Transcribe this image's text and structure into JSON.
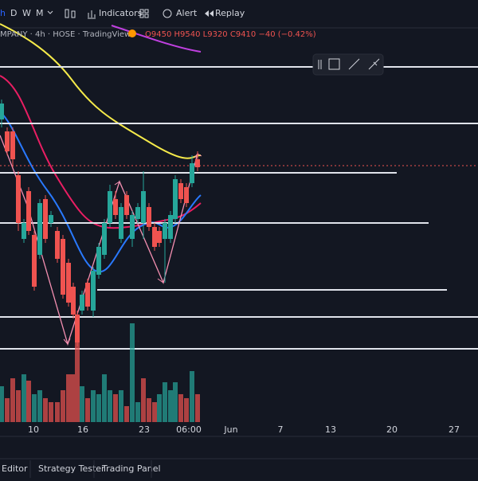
{
  "toolbar": {
    "intervals": [
      "h",
      "D",
      "W",
      "M"
    ],
    "indicators": "Indicators",
    "alert": "Alert",
    "replay": "Replay"
  },
  "legend": {
    "symbol": "MPANY · 4h · HOSE · TradingView",
    "ohlc": "O9450 H9540 L9320 C9410 −40 (−0.42%)"
  },
  "time_axis": [
    "10",
    "16",
    "23",
    "06:00",
    "Jun",
    "7",
    "13",
    "20",
    "27"
  ],
  "bottom_tabs": [
    "Editor",
    "Strategy Tester",
    "Trading Panel"
  ]
}
